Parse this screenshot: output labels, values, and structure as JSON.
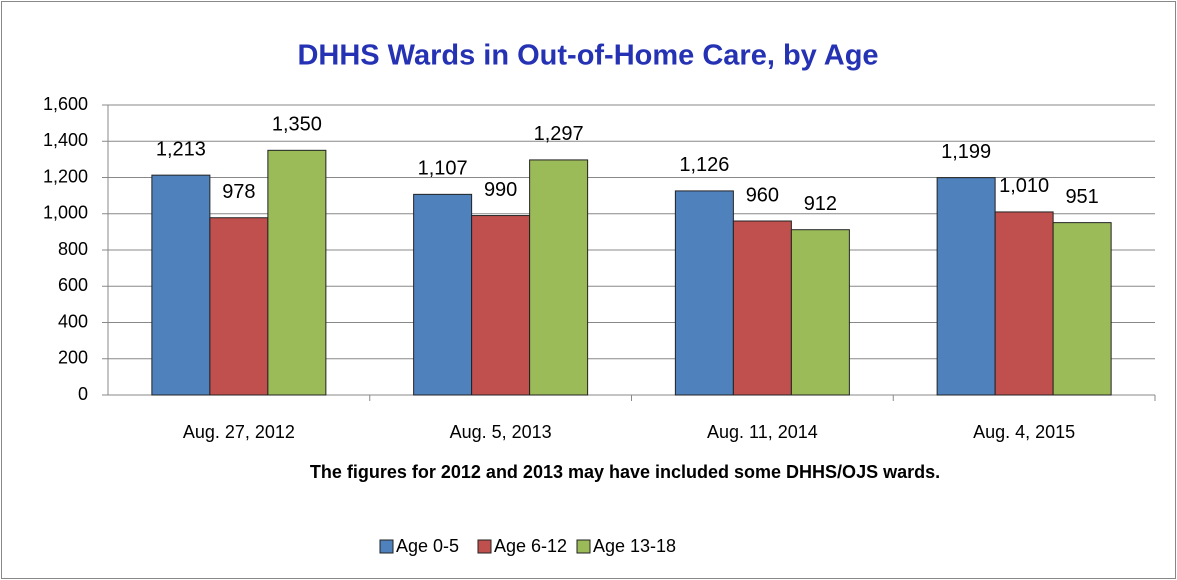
{
  "chart_data": {
    "type": "bar",
    "title": "DHHS Wards in Out-of-Home Care, by Age",
    "annotation": "The figures for 2012 and 2013 may have included some DHHS/OJS wards.",
    "categories": [
      "Aug. 27, 2012",
      "Aug. 5, 2013",
      "Aug. 11, 2014",
      "Aug. 4, 2015"
    ],
    "series": [
      {
        "name": "Age 0-5",
        "color": "#4f81bd",
        "values": [
          1213,
          1107,
          1126,
          1199
        ],
        "value_labels": [
          "1,213",
          "1,107",
          "1,126",
          "1,199"
        ]
      },
      {
        "name": "Age 6-12",
        "color": "#c0504d",
        "values": [
          978,
          990,
          960,
          1010
        ],
        "value_labels": [
          "978",
          "990",
          "960",
          "1,010"
        ]
      },
      {
        "name": "Age 13-18",
        "color": "#9bbb59",
        "values": [
          1350,
          1297,
          912,
          951
        ],
        "value_labels": [
          "1,350",
          "1,297",
          "912",
          "951"
        ]
      }
    ],
    "ylim": [
      0,
      1600
    ],
    "yticks": [
      0,
      200,
      400,
      600,
      800,
      {
        "value": 1000,
        "label": "1,000"
      },
      {
        "value": 1200,
        "label": "1,200"
      },
      {
        "value": 1400,
        "label": "1,400"
      },
      {
        "value": 1600,
        "label": "1,600"
      }
    ],
    "grid": true,
    "legend": "bottom"
  }
}
